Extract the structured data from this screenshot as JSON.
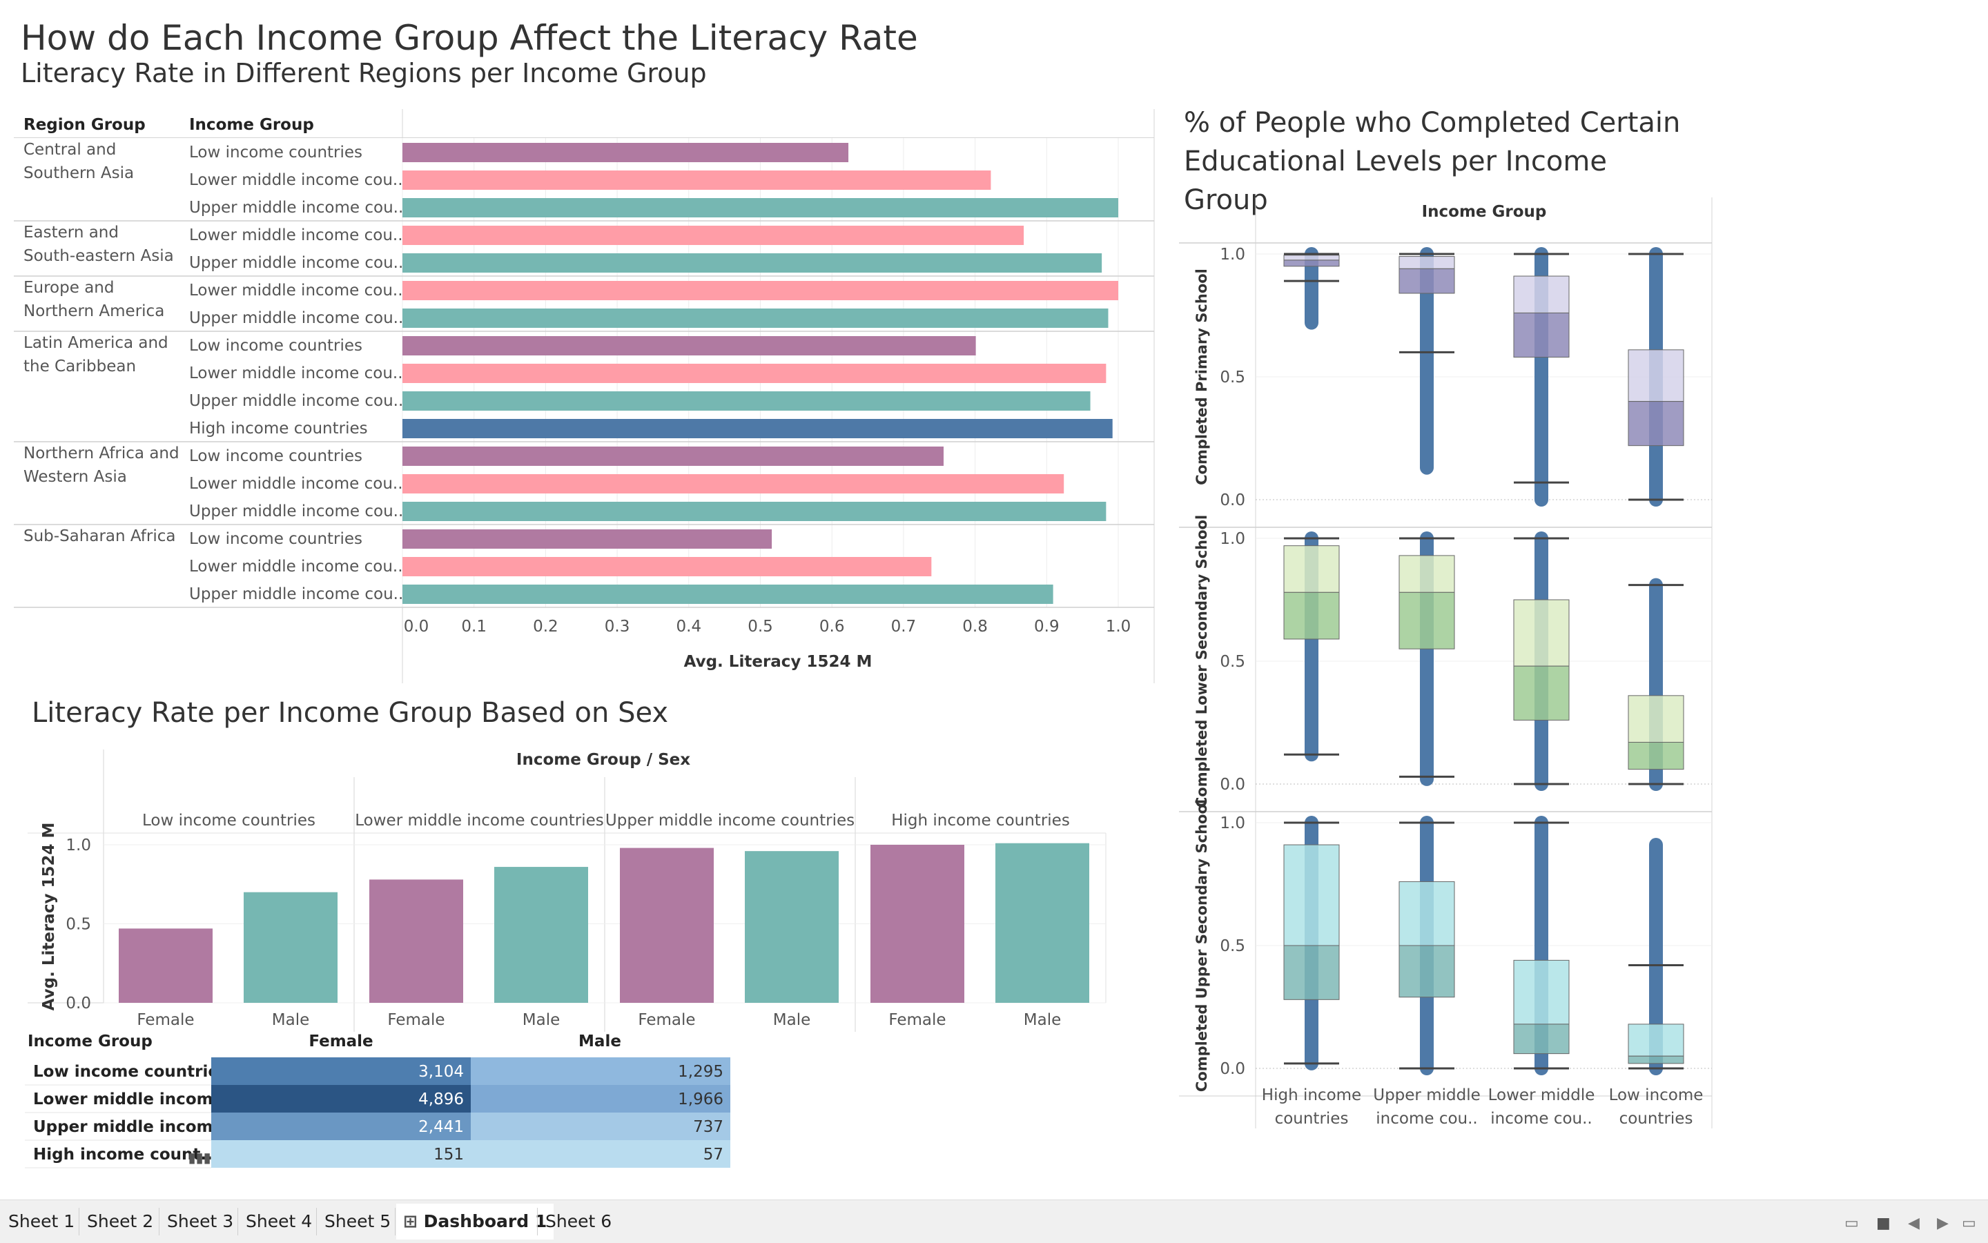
{
  "titles": {
    "main": "How do Each Income Group Affect the Literacy Rate",
    "sub": "Literacy Rate in Different Regions per Income Group",
    "right": "% of People who Completed Certain Educational Levels per Income Group",
    "mid": "Literacy Rate per Income Group Based on Sex"
  },
  "colors": {
    "low": "#b07aa1",
    "lower_middle": "#ff9da7",
    "upper_middle": "#76b7b2",
    "high": "#4e79a7"
  },
  "chart_data": [
    {
      "type": "bar",
      "orientation": "horizontal",
      "headers": {
        "region": "Region Group",
        "income": "Income Group"
      },
      "xlabel": "Avg. Literacy 1524 M",
      "xlim": [
        0,
        1.05
      ],
      "xticks": [
        "0.0",
        "0.1",
        "0.2",
        "0.3",
        "0.4",
        "0.5",
        "0.6",
        "0.7",
        "0.8",
        "0.9",
        "1.0"
      ],
      "grid": true,
      "regions": [
        {
          "label": [
            "Central and",
            "Southern Asia"
          ],
          "rows": [
            {
              "income": "Low income countries",
              "group": "low",
              "value": 0.623
            },
            {
              "income": "Lower middle income cou..",
              "group": "lower_middle",
              "value": 0.822
            },
            {
              "income": "Upper middle income cou..",
              "group": "upper_middle",
              "value": 1.0
            }
          ]
        },
        {
          "label": [
            "Eastern and",
            "South-eastern Asia"
          ],
          "rows": [
            {
              "income": "Lower middle income cou..",
              "group": "lower_middle",
              "value": 0.868
            },
            {
              "income": "Upper middle income cou..",
              "group": "upper_middle",
              "value": 0.977
            }
          ]
        },
        {
          "label": [
            "Europe and",
            "Northern America"
          ],
          "rows": [
            {
              "income": "Lower middle income cou..",
              "group": "lower_middle",
              "value": 1.0
            },
            {
              "income": "Upper middle income cou..",
              "group": "upper_middle",
              "value": 0.986
            }
          ]
        },
        {
          "label": [
            "Latin America and",
            "the Caribbean"
          ],
          "rows": [
            {
              "income": "Low income countries",
              "group": "low",
              "value": 0.801
            },
            {
              "income": "Lower middle income cou..",
              "group": "lower_middle",
              "value": 0.983
            },
            {
              "income": "Upper middle income cou..",
              "group": "upper_middle",
              "value": 0.961
            },
            {
              "income": "High income countries",
              "group": "high",
              "value": 0.992
            }
          ]
        },
        {
          "label": [
            "Northern Africa and",
            "Western Asia"
          ],
          "rows": [
            {
              "income": "Low income countries",
              "group": "low",
              "value": 0.756
            },
            {
              "income": "Lower middle income cou..",
              "group": "lower_middle",
              "value": 0.924
            },
            {
              "income": "Upper middle income cou..",
              "group": "upper_middle",
              "value": 0.983
            }
          ]
        },
        {
          "label": [
            "Sub-Saharan Africa"
          ],
          "rows": [
            {
              "income": "Low income countries",
              "group": "low",
              "value": 0.516
            },
            {
              "income": "Lower middle income cou..",
              "group": "lower_middle",
              "value": 0.739
            },
            {
              "income": "Upper middle income cou..",
              "group": "upper_middle",
              "value": 0.909
            }
          ]
        }
      ]
    },
    {
      "type": "bar",
      "header": "Income Group  /  Sex",
      "ylabel": "Avg. Literacy 1524 M",
      "ylim": [
        0,
        1.05
      ],
      "yticks": [
        "0.0",
        "0.5",
        "1.0"
      ],
      "groups": [
        {
          "label": "Low income countries",
          "bars": [
            {
              "sex": "Female",
              "value": 0.47
            },
            {
              "sex": "Male",
              "value": 0.7
            }
          ]
        },
        {
          "label": "Lower middle income countries",
          "bars": [
            {
              "sex": "Female",
              "value": 0.78
            },
            {
              "sex": "Male",
              "value": 0.86
            }
          ]
        },
        {
          "label": "Upper middle income countries",
          "bars": [
            {
              "sex": "Female",
              "value": 0.98
            },
            {
              "sex": "Male",
              "value": 0.96
            }
          ]
        },
        {
          "label": "High income countries",
          "bars": [
            {
              "sex": "Female",
              "value": 1.0
            },
            {
              "sex": "Male",
              "value": 1.01
            }
          ]
        }
      ],
      "colors": {
        "Female": "#b07aa1",
        "Male": "#76b7b2"
      }
    },
    {
      "type": "table",
      "columns": [
        "Income Group",
        "Female",
        "Male"
      ],
      "rows": [
        {
          "label": "Low income countries",
          "female": "3,104",
          "male": "1,295"
        },
        {
          "label": "Lower middle income ..",
          "female": "4,896",
          "male": "1,966"
        },
        {
          "label": "Upper middle income ..",
          "female": "2,441",
          "male": "737"
        },
        {
          "label": "High income count..",
          "female": "151",
          "male": "57"
        }
      ],
      "shades": {
        "female": [
          "#4e7eaf",
          "#2b5584",
          "#6a97c3",
          "#b9dcef"
        ],
        "male": [
          "#8fb8de",
          "#7ea9d4",
          "#a4c9e6",
          "#b9dcef"
        ]
      }
    },
    {
      "type": "box",
      "header": "Income Group",
      "categories": [
        "High income countries",
        "Upper middle income cou..",
        "Lower middle income cou..",
        "Low income countries"
      ],
      "category_lines": [
        [
          "High income",
          "countries"
        ],
        [
          "Upper middle",
          "income cou.."
        ],
        [
          "Lower middle",
          "income cou.."
        ],
        [
          "Low income",
          "countries"
        ]
      ],
      "ylim": [
        0,
        1.0
      ],
      "yticks": [
        "0.0",
        "0.5",
        "1.0"
      ],
      "panels": [
        {
          "ylabel": "Completed Primary School",
          "light": "#d5d2ea",
          "dark": "#8f8bb8",
          "outliers": true,
          "boxes": [
            {
              "min": 0.89,
              "q1": 0.95,
              "median": 0.975,
              "q3": 0.995,
              "max": 1.0,
              "point_low": 0.72
            },
            {
              "min": 0.6,
              "q1": 0.84,
              "median": 0.94,
              "q3": 0.99,
              "max": 1.0,
              "point_low": 0.13
            },
            {
              "min": 0.07,
              "q1": 0.58,
              "median": 0.76,
              "q3": 0.91,
              "max": 1.0,
              "point_low": 0.0
            },
            {
              "min": 0.0,
              "q1": 0.22,
              "median": 0.4,
              "q3": 0.61,
              "max": 1.0,
              "point_low": 0.0
            }
          ]
        },
        {
          "ylabel": "Completed Lower Secondary School",
          "light": "#dcecc4",
          "dark": "#9fcb94",
          "outliers": true,
          "boxes": [
            {
              "min": 0.12,
              "q1": 0.59,
              "median": 0.78,
              "q3": 0.97,
              "max": 1.0,
              "point_low": 0.12
            },
            {
              "min": 0.03,
              "q1": 0.55,
              "median": 0.78,
              "q3": 0.93,
              "max": 1.0,
              "point_low": 0.02
            },
            {
              "min": 0.0,
              "q1": 0.26,
              "median": 0.48,
              "q3": 0.75,
              "max": 1.0,
              "point_low": 0.0
            },
            {
              "min": 0.0,
              "q1": 0.06,
              "median": 0.17,
              "q3": 0.36,
              "max": 0.81,
              "point_low": 0.0
            }
          ]
        },
        {
          "ylabel": "Completed Upper Secondary School",
          "light": "#aee3e6",
          "dark": "#7fb8b6",
          "outliers": true,
          "boxes": [
            {
              "min": 0.02,
              "q1": 0.28,
              "median": 0.5,
              "q3": 0.91,
              "max": 1.0,
              "point_low": 0.02
            },
            {
              "min": 0.0,
              "q1": 0.29,
              "median": 0.5,
              "q3": 0.76,
              "max": 1.0,
              "point_low": 0.0
            },
            {
              "min": 0.0,
              "q1": 0.06,
              "median": 0.18,
              "q3": 0.44,
              "max": 1.0,
              "point_low": 0.0
            },
            {
              "min": 0.0,
              "q1": 0.02,
              "median": 0.05,
              "q3": 0.18,
              "max": 0.42,
              "point_low": 0.0,
              "point_high": 0.91
            }
          ]
        }
      ]
    }
  ],
  "tabs": [
    "Sheet 1",
    "Sheet 2",
    "Sheet 3",
    "Sheet 4",
    "Sheet 5",
    "Dashboard 1",
    "Sheet 6"
  ],
  "active_tab": "Dashboard 1",
  "tab_icons": {
    "dashboard": "dashboard-grid-icon"
  },
  "footer_controls": [
    "view-thumbnails-icon",
    "view-filmstrip-icon",
    "prev-sheet-icon",
    "next-sheet-icon",
    "show-sheets-icon"
  ]
}
